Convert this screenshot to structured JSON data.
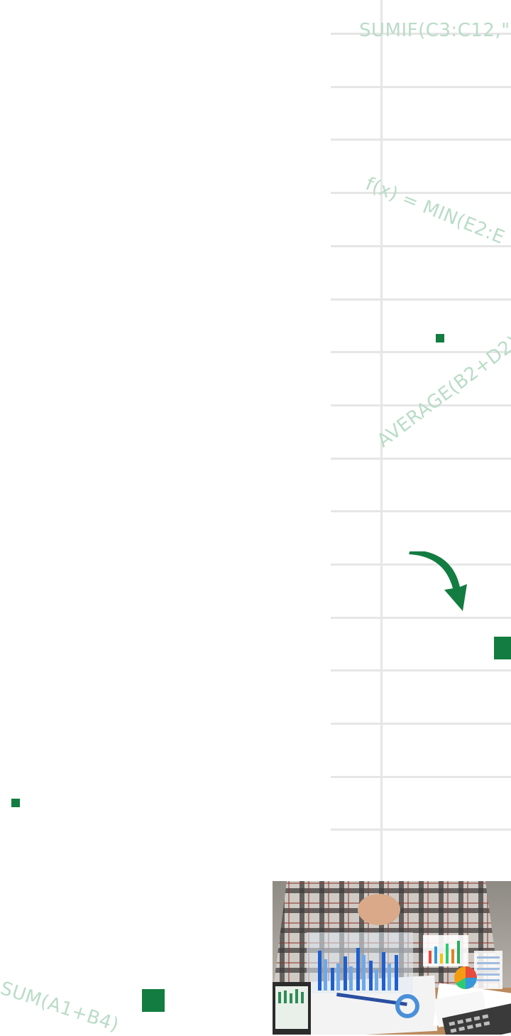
{
  "formulas": {
    "top": "SUMIF(C3:C12,\"",
    "diagonal_down": "f(x) = MIN(E2:E",
    "diagonal_up": "AVERAGE(B2+D2)",
    "bottom_left": "SUM(A1+B4)"
  },
  "colors": {
    "accent": "#137c41",
    "formula_text": "#b9dcc6",
    "gridline": "#e6e6e6",
    "background": "#ffffff"
  },
  "icons": {
    "arrow": "curved-arrow-down-right-icon"
  },
  "photo": {
    "subject": "person-with-financial-charts"
  }
}
